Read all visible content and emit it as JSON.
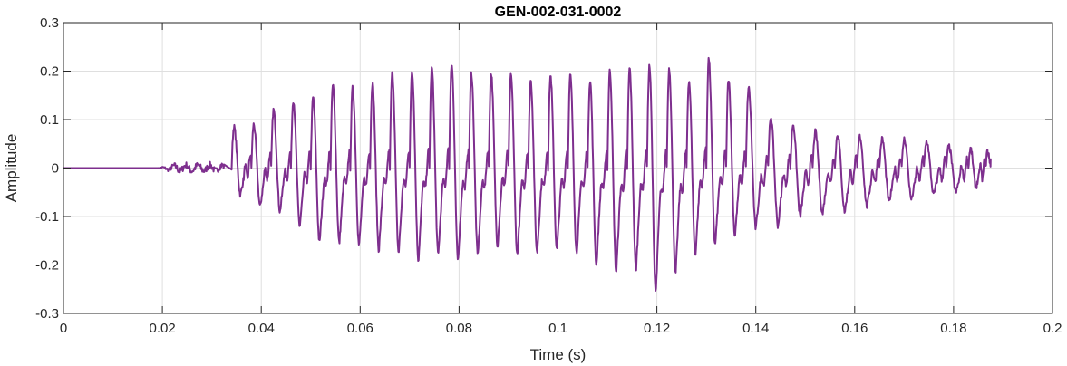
{
  "chart_data": {
    "type": "line",
    "title": "GEN-002-031-0002",
    "xlabel": "Time (s)",
    "ylabel": "Amplitude",
    "xlim": [
      0,
      0.2
    ],
    "ylim": [
      -0.3,
      0.3
    ],
    "xticks": [
      0,
      0.02,
      0.04,
      0.06,
      0.08,
      0.1,
      0.12,
      0.14,
      0.16,
      0.18,
      0.2
    ],
    "xtick_labels": [
      "0",
      "0.02",
      "0.04",
      "0.06",
      "0.08",
      "0.1",
      "0.12",
      "0.14",
      "0.16",
      "0.18",
      "0.2"
    ],
    "yticks": [
      -0.3,
      -0.2,
      -0.1,
      0,
      0.1,
      0.2,
      0.3
    ],
    "ytick_labels": [
      "-0.3",
      "-0.2",
      "-0.1",
      "0",
      "0.1",
      "0.2",
      "0.3"
    ],
    "grid": true,
    "series": [
      {
        "color": "#7e2f8e",
        "duration": 0.1875,
        "silence_end": 0.019,
        "noise_end": 0.0325,
        "noise_amplitude": 0.01,
        "cycles": [
          {
            "t": 0.034,
            "max": 0.085,
            "min": -0.055
          },
          {
            "t": 0.038,
            "max": 0.09,
            "min": -0.08
          },
          {
            "t": 0.042,
            "max": 0.12,
            "min": -0.09
          },
          {
            "t": 0.046,
            "max": 0.14,
            "min": -0.12
          },
          {
            "t": 0.05,
            "max": 0.145,
            "min": -0.155
          },
          {
            "t": 0.054,
            "max": 0.17,
            "min": -0.155
          },
          {
            "t": 0.058,
            "max": 0.165,
            "min": -0.16
          },
          {
            "t": 0.062,
            "max": 0.175,
            "min": -0.17
          },
          {
            "t": 0.066,
            "max": 0.195,
            "min": -0.175
          },
          {
            "t": 0.07,
            "max": 0.2,
            "min": -0.19
          },
          {
            "t": 0.074,
            "max": 0.205,
            "min": -0.18
          },
          {
            "t": 0.078,
            "max": 0.215,
            "min": -0.19
          },
          {
            "t": 0.082,
            "max": 0.195,
            "min": -0.18
          },
          {
            "t": 0.086,
            "max": 0.195,
            "min": -0.16
          },
          {
            "t": 0.09,
            "max": 0.19,
            "min": -0.18
          },
          {
            "t": 0.094,
            "max": 0.18,
            "min": -0.175
          },
          {
            "t": 0.098,
            "max": 0.19,
            "min": -0.17
          },
          {
            "t": 0.102,
            "max": 0.19,
            "min": -0.175
          },
          {
            "t": 0.106,
            "max": 0.18,
            "min": -0.2
          },
          {
            "t": 0.11,
            "max": 0.2,
            "min": -0.215
          },
          {
            "t": 0.114,
            "max": 0.205,
            "min": -0.21
          },
          {
            "t": 0.118,
            "max": 0.21,
            "min": -0.255
          },
          {
            "t": 0.122,
            "max": 0.205,
            "min": -0.22
          },
          {
            "t": 0.126,
            "max": 0.18,
            "min": -0.18
          },
          {
            "t": 0.13,
            "max": 0.225,
            "min": -0.16
          },
          {
            "t": 0.134,
            "max": 0.185,
            "min": -0.14
          },
          {
            "t": 0.138,
            "max": 0.165,
            "min": -0.125
          },
          {
            "t": 0.1425,
            "max": 0.105,
            "min": -0.12
          },
          {
            "t": 0.147,
            "max": 0.09,
            "min": -0.1
          },
          {
            "t": 0.1515,
            "max": 0.075,
            "min": -0.095
          },
          {
            "t": 0.156,
            "max": 0.07,
            "min": -0.09
          },
          {
            "t": 0.1605,
            "max": 0.065,
            "min": -0.08
          },
          {
            "t": 0.165,
            "max": 0.06,
            "min": -0.07
          },
          {
            "t": 0.1695,
            "max": 0.06,
            "min": -0.065
          },
          {
            "t": 0.174,
            "max": 0.055,
            "min": -0.055
          },
          {
            "t": 0.1785,
            "max": 0.045,
            "min": -0.05
          },
          {
            "t": 0.183,
            "max": 0.04,
            "min": -0.04
          },
          {
            "t": 0.1865,
            "max": 0.035,
            "min": 0.005
          }
        ]
      }
    ]
  }
}
